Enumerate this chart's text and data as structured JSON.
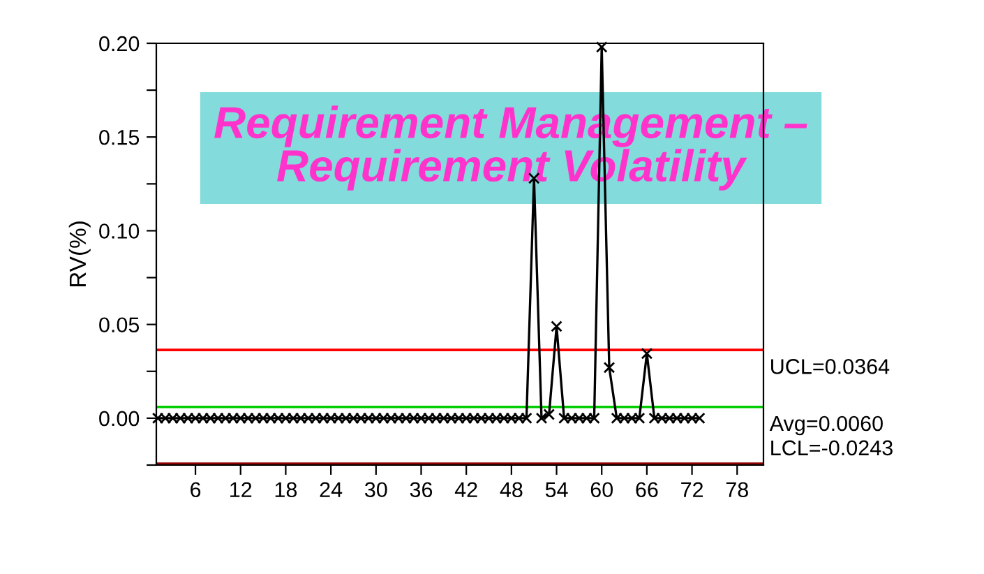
{
  "chart_data": {
    "type": "line",
    "title": "Requirement Management –\nRequirement Volatility",
    "ylabel": "RV(%)",
    "x": [
      1,
      2,
      3,
      4,
      5,
      6,
      7,
      8,
      9,
      10,
      11,
      12,
      13,
      14,
      15,
      16,
      17,
      18,
      19,
      20,
      21,
      22,
      23,
      24,
      25,
      26,
      27,
      28,
      29,
      30,
      31,
      32,
      33,
      34,
      35,
      36,
      37,
      38,
      39,
      40,
      41,
      42,
      43,
      44,
      45,
      46,
      47,
      48,
      49,
      50,
      51,
      52,
      53,
      54,
      55,
      56,
      57,
      58,
      59,
      60,
      61,
      62,
      63,
      64,
      65,
      66,
      67,
      68,
      69,
      70,
      71,
      72,
      73
    ],
    "series": [
      {
        "color": "#000000",
        "values": [
          0,
          0,
          0,
          0,
          0,
          0,
          0,
          0,
          0,
          0,
          0,
          0,
          0,
          0,
          0,
          0,
          0,
          0,
          0,
          0,
          0,
          0,
          0,
          0,
          0,
          0,
          0,
          0,
          0,
          0,
          0,
          0,
          0,
          0,
          0,
          0,
          0,
          0,
          0,
          0,
          0,
          0,
          0,
          0,
          0,
          0,
          0,
          0,
          0,
          0,
          0.128,
          0,
          0.002,
          0.049,
          0,
          0,
          0,
          0,
          0,
          0.198,
          0.027,
          0,
          0,
          0,
          0,
          0.0345,
          0,
          0,
          0,
          0,
          0,
          0,
          0
        ]
      }
    ],
    "marker": "cross",
    "line_style": "solid",
    "xlim": [
      0.8,
      81.5
    ],
    "xticks": [
      6,
      12,
      18,
      24,
      30,
      36,
      42,
      48,
      54,
      60,
      66,
      72,
      78
    ],
    "ylim": [
      -0.025,
      0.2
    ],
    "yticks": [
      {
        "value": -0.025,
        "label": null
      },
      {
        "value": 0,
        "label": "0.00"
      },
      {
        "value": 0.025,
        "label": null
      },
      {
        "value": 0.05,
        "label": "0.05"
      },
      {
        "value": 0.075,
        "label": null
      },
      {
        "value": 0.1,
        "label": "0.10"
      },
      {
        "value": 0.125,
        "label": null
      },
      {
        "value": 0.15,
        "label": "0.15"
      },
      {
        "value": 0.175,
        "label": null
      },
      {
        "value": 0.2,
        "label": "0.20"
      }
    ],
    "ref_lines": [
      {
        "axis": "y",
        "value": 0.0364,
        "label": "UCL=0.0364",
        "color": "#ff0000"
      },
      {
        "axis": "y",
        "value": 0.006,
        "label": "Avg=0.0060",
        "color": "#00cc00"
      },
      {
        "axis": "y",
        "value": -0.0243,
        "label": "LCL=-0.0243",
        "color": "#8b0000"
      }
    ],
    "grid": false,
    "legend": false
  }
}
